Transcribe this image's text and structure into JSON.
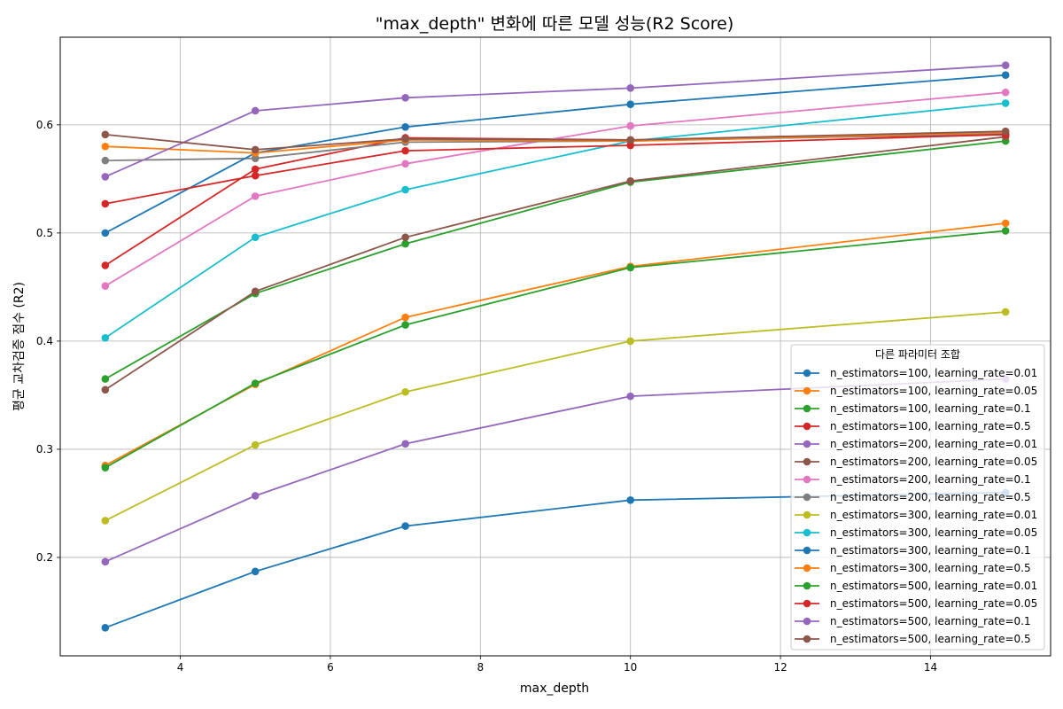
{
  "chart_data": {
    "type": "line",
    "title": "\"max_depth\" 변화에 따른 모델 성능(R2 Score)",
    "xlabel": "max_depth",
    "ylabel": "평균 교차검증 점수 (R2)",
    "xlim": [
      2.4,
      15.6
    ],
    "ylim": [
      0.109,
      0.681
    ],
    "xticks": [
      4,
      6,
      8,
      10,
      12,
      14
    ],
    "yticks": [
      0.2,
      0.3,
      0.4,
      0.5,
      0.6
    ],
    "x": [
      3,
      5,
      7,
      10,
      15
    ],
    "grid": true,
    "legend": {
      "title": "다른 파라미터 조합",
      "position": "bottom-right"
    },
    "series": [
      {
        "name": "n_estimators=100, learning_rate=0.01",
        "color": "#1f77b4",
        "values": [
          0.135,
          0.187,
          0.229,
          0.253,
          0.26
        ]
      },
      {
        "name": "n_estimators=100, learning_rate=0.05",
        "color": "#ff7f0e",
        "values": [
          0.285,
          0.36,
          0.422,
          0.469,
          0.509
        ]
      },
      {
        "name": "n_estimators=100, learning_rate=0.1",
        "color": "#2ca02c",
        "values": [
          0.365,
          0.444,
          0.49,
          0.547,
          0.585
        ]
      },
      {
        "name": "n_estimators=100, learning_rate=0.5",
        "color": "#d62728",
        "values": [
          0.47,
          0.559,
          0.588,
          0.586,
          0.591
        ]
      },
      {
        "name": "n_estimators=200, learning_rate=0.01",
        "color": "#9467bd",
        "values": [
          0.196,
          0.257,
          0.305,
          0.349,
          0.365
        ]
      },
      {
        "name": "n_estimators=200, learning_rate=0.05",
        "color": "#8c564b",
        "values": [
          0.355,
          0.446,
          0.496,
          0.548,
          0.589
        ]
      },
      {
        "name": "n_estimators=200, learning_rate=0.1",
        "color": "#e377c2",
        "values": [
          0.451,
          0.534,
          0.564,
          0.599,
          0.63
        ]
      },
      {
        "name": "n_estimators=200, learning_rate=0.5",
        "color": "#7f7f7f",
        "values": [
          0.567,
          0.569,
          0.584,
          0.585,
          0.592
        ]
      },
      {
        "name": "n_estimators=300, learning_rate=0.01",
        "color": "#bcbd22",
        "values": [
          0.234,
          0.304,
          0.353,
          0.4,
          0.427
        ]
      },
      {
        "name": "n_estimators=300, learning_rate=0.05",
        "color": "#17becf",
        "values": [
          0.403,
          0.496,
          0.54,
          0.585,
          0.62
        ]
      },
      {
        "name": "n_estimators=300, learning_rate=0.1",
        "color": "#1f77b4",
        "values": [
          0.5,
          0.574,
          0.598,
          0.619,
          0.646
        ]
      },
      {
        "name": "n_estimators=300, learning_rate=0.5",
        "color": "#ff7f0e",
        "values": [
          0.58,
          0.574,
          0.586,
          0.585,
          0.593
        ]
      },
      {
        "name": "n_estimators=500, learning_rate=0.01",
        "color": "#2ca02c",
        "values": [
          0.283,
          0.361,
          0.415,
          0.468,
          0.502
        ]
      },
      {
        "name": "n_estimators=500, learning_rate=0.05",
        "color": "#d62728",
        "values": [
          0.527,
          0.553,
          0.576,
          0.581,
          0.591
        ]
      },
      {
        "name": "n_estimators=500, learning_rate=0.1",
        "color": "#9467bd",
        "values": [
          0.552,
          0.613,
          0.625,
          0.634,
          0.655
        ]
      },
      {
        "name": "n_estimators=500, learning_rate=0.5",
        "color": "#8c564b",
        "values": [
          0.591,
          0.577,
          0.587,
          0.586,
          0.594
        ]
      }
    ]
  }
}
